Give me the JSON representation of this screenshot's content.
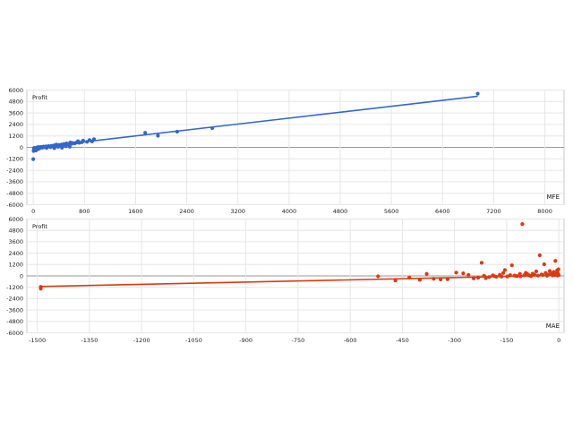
{
  "chart_data": [
    {
      "type": "scatter",
      "plot_label": "Profit",
      "axis_name": "MFE",
      "color": "#3366cc",
      "xlim": [
        -100,
        8300
      ],
      "ylim": [
        -6000,
        6000
      ],
      "x_ticks": [
        0,
        800,
        1600,
        2400,
        3200,
        4000,
        4800,
        5600,
        6400,
        7200,
        8000
      ],
      "y_ticks": [
        6000,
        4800,
        3600,
        2400,
        1200,
        0,
        -1200,
        -2400,
        -3600,
        -4800,
        -6000
      ],
      "trend": {
        "from": [
          0,
          -50
        ],
        "to": [
          6950,
          5350
        ]
      },
      "points": [
        [
          6950,
          5620
        ],
        [
          2800,
          2010
        ],
        [
          2250,
          1640
        ],
        [
          1950,
          1220
        ],
        [
          1750,
          1530
        ],
        [
          950,
          860
        ],
        [
          880,
          760
        ],
        [
          920,
          620
        ],
        [
          840,
          580
        ],
        [
          780,
          700
        ],
        [
          760,
          540
        ],
        [
          720,
          480
        ],
        [
          700,
          650
        ],
        [
          680,
          520
        ],
        [
          650,
          420
        ],
        [
          620,
          460
        ],
        [
          600,
          380
        ],
        [
          580,
          520
        ],
        [
          560,
          300
        ],
        [
          540,
          340
        ],
        [
          520,
          410
        ],
        [
          500,
          280
        ],
        [
          480,
          350
        ],
        [
          460,
          220
        ],
        [
          440,
          300
        ],
        [
          420,
          180
        ],
        [
          400,
          250
        ],
        [
          380,
          140
        ],
        [
          360,
          300
        ],
        [
          340,
          120
        ],
        [
          320,
          200
        ],
        [
          300,
          90
        ],
        [
          280,
          160
        ],
        [
          260,
          60
        ],
        [
          240,
          130
        ],
        [
          220,
          40
        ],
        [
          200,
          110
        ],
        [
          180,
          20
        ],
        [
          160,
          80
        ],
        [
          140,
          -40
        ],
        [
          120,
          50
        ],
        [
          100,
          -90
        ],
        [
          90,
          10
        ],
        [
          80,
          -160
        ],
        [
          70,
          -60
        ],
        [
          60,
          -220
        ],
        [
          50,
          -30
        ],
        [
          40,
          -330
        ],
        [
          30,
          -100
        ],
        [
          20,
          -250
        ],
        [
          10,
          -150
        ],
        [
          5,
          -380
        ],
        [
          0,
          -1230
        ],
        [
          15,
          -60
        ],
        [
          45,
          -180
        ],
        [
          75,
          30
        ],
        [
          110,
          -20
        ],
        [
          150,
          10
        ],
        [
          210,
          -60
        ],
        [
          270,
          20
        ],
        [
          330,
          -80
        ],
        [
          390,
          60
        ],
        [
          450,
          -40
        ],
        [
          510,
          120
        ],
        [
          570,
          70
        ]
      ]
    },
    {
      "type": "scatter",
      "plot_label": "Profit",
      "axis_name": "MAE",
      "color": "#dc3912",
      "xlim": [
        -1530,
        15
      ],
      "ylim": [
        -6000,
        6000
      ],
      "x_ticks": [
        -1500,
        -1350,
        -1200,
        -1050,
        -900,
        -750,
        -600,
        -450,
        -300,
        -150,
        0
      ],
      "y_ticks": [
        6000,
        4800,
        3600,
        2400,
        1200,
        0,
        -1200,
        -2400,
        -3600,
        -4800,
        -6000
      ],
      "trend": {
        "from": [
          -1490,
          -1120
        ],
        "to": [
          0,
          60
        ]
      },
      "points": [
        [
          -1490,
          -1150
        ],
        [
          -1490,
          -1350
        ],
        [
          -520,
          -40
        ],
        [
          -470,
          -480
        ],
        [
          -430,
          -180
        ],
        [
          -400,
          -420
        ],
        [
          -380,
          210
        ],
        [
          -360,
          -300
        ],
        [
          -340,
          -380
        ],
        [
          -320,
          -350
        ],
        [
          -295,
          350
        ],
        [
          -275,
          270
        ],
        [
          -260,
          110
        ],
        [
          -245,
          -260
        ],
        [
          -232,
          -190
        ],
        [
          -222,
          1380
        ],
        [
          -210,
          -240
        ],
        [
          -200,
          -120
        ],
        [
          -190,
          60
        ],
        [
          -180,
          -90
        ],
        [
          -170,
          120
        ],
        [
          -160,
          310
        ],
        [
          -155,
          620
        ],
        [
          -148,
          -60
        ],
        [
          -140,
          90
        ],
        [
          -135,
          1120
        ],
        [
          -128,
          40
        ],
        [
          -120,
          -20
        ],
        [
          -112,
          210
        ],
        [
          -105,
          5470
        ],
        [
          -100,
          60
        ],
        [
          -95,
          320
        ],
        [
          -90,
          180
        ],
        [
          -85,
          50
        ],
        [
          -80,
          -30
        ],
        [
          -75,
          240
        ],
        [
          -70,
          120
        ],
        [
          -65,
          480
        ],
        [
          -60,
          30
        ],
        [
          -55,
          2170
        ],
        [
          -50,
          160
        ],
        [
          -46,
          90
        ],
        [
          -42,
          1230
        ],
        [
          -38,
          320
        ],
        [
          -34,
          20
        ],
        [
          -30,
          140
        ],
        [
          -26,
          520
        ],
        [
          -22,
          210
        ],
        [
          -18,
          60
        ],
        [
          -15,
          420
        ],
        [
          -12,
          80
        ],
        [
          -10,
          1580
        ],
        [
          -8,
          260
        ],
        [
          -6,
          120
        ],
        [
          -5,
          580
        ],
        [
          -4,
          40
        ],
        [
          -3,
          320
        ],
        [
          -2,
          160
        ],
        [
          -1,
          700
        ],
        [
          0,
          90
        ],
        [
          -110,
          -40
        ],
        [
          -125,
          10
        ],
        [
          -165,
          -70
        ],
        [
          -185,
          -30
        ],
        [
          -215,
          20
        ]
      ]
    }
  ]
}
